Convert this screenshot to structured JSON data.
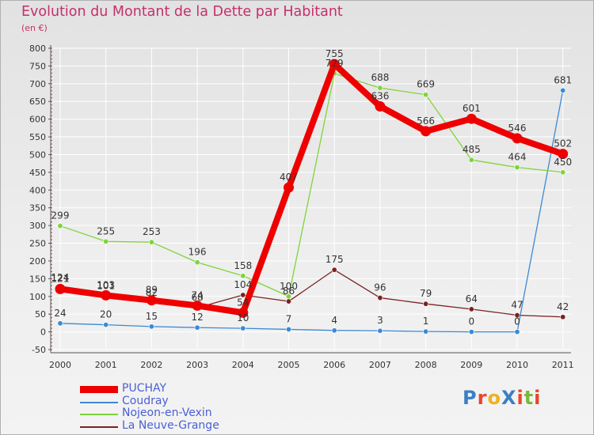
{
  "header": {
    "title": "Evolution du Montant de la Dette par Habitant",
    "unit": "(en €)"
  },
  "logo": {
    "text": "ProXiti",
    "colors": [
      "#3b7fc4",
      "#e8452c",
      "#f0b020",
      "#3b7fc4",
      "#e8452c",
      "#7ab83a",
      "#e8452c"
    ]
  },
  "chart_data": {
    "type": "line",
    "title": "Evolution du Montant de la Dette par Habitant",
    "unit": "(en €)",
    "x": [
      "2000",
      "2001",
      "2002",
      "2003",
      "2004",
      "2005",
      "2006",
      "2007",
      "2008",
      "2009",
      "2010",
      "2011"
    ],
    "ylim": [
      -50,
      800
    ],
    "yticks": [
      -50,
      0,
      50,
      100,
      150,
      200,
      250,
      300,
      350,
      400,
      450,
      500,
      550,
      600,
      650,
      700,
      750,
      800
    ],
    "grid": true,
    "legend_position": "bottom-left",
    "series": [
      {
        "name": "PUCHAY",
        "color": "#ee0000",
        "emphasis": true,
        "values": [
          121,
          103,
          89,
          74,
          54,
          407,
          755,
          636,
          566,
          601,
          546,
          502
        ],
        "labels": [
          "121",
          "103",
          "89",
          "74",
          "54",
          "407",
          "755",
          "636",
          "566",
          "601",
          "546",
          "502"
        ]
      },
      {
        "name": "Coudray",
        "color": "#3a8ad6",
        "emphasis": false,
        "values": [
          24,
          20,
          15,
          12,
          10,
          7,
          4,
          3,
          1,
          0,
          0,
          681
        ],
        "labels": [
          "24",
          "20",
          "15",
          "12",
          "10",
          "7",
          "4",
          "3",
          "1",
          "0",
          "0",
          "681"
        ]
      },
      {
        "name": "Nojeon-en-Vexin",
        "color": "#7fd43a",
        "emphasis": false,
        "values": [
          299,
          255,
          253,
          196,
          158,
          100,
          729,
          688,
          669,
          485,
          464,
          450
        ],
        "labels": [
          "299",
          "255",
          "253",
          "196",
          "158",
          "100",
          "729",
          "688",
          "669",
          "485",
          "464",
          "450"
        ]
      },
      {
        "name": "La Neuve-Grange",
        "color": "#7a2222",
        "emphasis": false,
        "values": [
          124,
          101,
          82,
          68,
          104,
          86,
          175,
          96,
          79,
          64,
          47,
          42
        ],
        "labels": [
          "124",
          "101",
          "82",
          "68",
          "104",
          "86",
          "175",
          "96",
          "79",
          "64",
          "47",
          "42"
        ]
      }
    ]
  }
}
